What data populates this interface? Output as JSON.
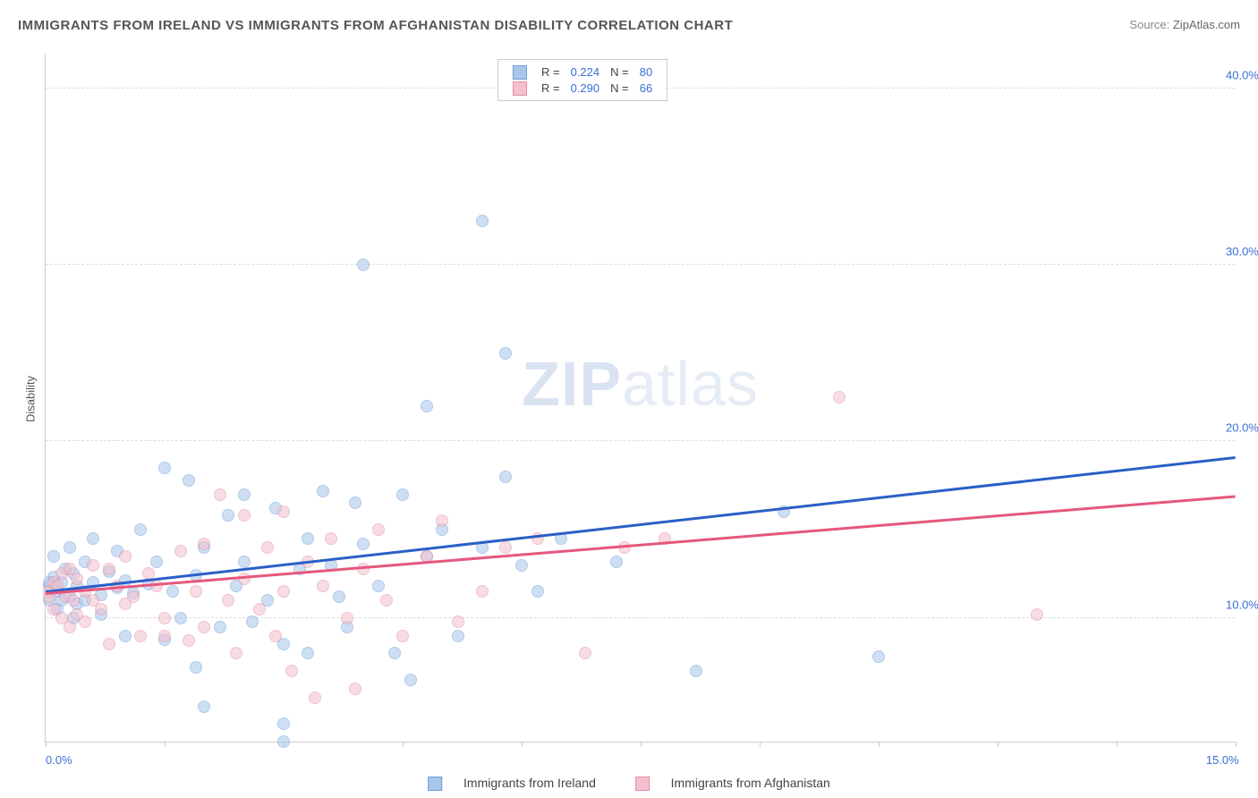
{
  "title": "IMMIGRANTS FROM IRELAND VS IMMIGRANTS FROM AFGHANISTAN DISABILITY CORRELATION CHART",
  "source_label": "Source:",
  "source_value": "ZipAtlas.com",
  "ylabel": "Disability",
  "watermark_a": "ZIP",
  "watermark_b": "atlas",
  "chart": {
    "type": "scatter",
    "xlim": [
      0,
      15
    ],
    "ylim": [
      3,
      42
    ],
    "x_ticks": [
      0,
      1.5,
      3,
      4.5,
      6,
      7.5,
      9,
      10.5,
      12,
      13.5,
      15
    ],
    "x_tick_labels": {
      "0": "0.0%",
      "15": "15.0%"
    },
    "y_gridlines": [
      10,
      20,
      30,
      40
    ],
    "y_tick_labels": {
      "10": "10.0%",
      "20": "20.0%",
      "30": "30.0%",
      "40": "40.0%"
    },
    "background_color": "#ffffff",
    "grid_color": "#dddddd",
    "axis_color": "#cccccc",
    "label_color": "#3b6fd6",
    "marker_radius": 7,
    "marker_opacity": 0.55,
    "series": [
      {
        "id": "ireland",
        "name": "Immigrants from Ireland",
        "fill_color": "#a8c5eb",
        "stroke_color": "#6f9fd8",
        "trend_color": "#2a5fc7",
        "R": "0.224",
        "N": "80",
        "trend": {
          "x1": 0,
          "y1": 11.4,
          "x2": 15,
          "y2": 19.0
        },
        "points": [
          [
            0.05,
            11.8
          ],
          [
            0.1,
            12.3
          ],
          [
            0.1,
            13.5
          ],
          [
            0.15,
            11.5
          ],
          [
            0.15,
            10.5
          ],
          [
            0.2,
            12.0
          ],
          [
            0.2,
            11.0
          ],
          [
            0.25,
            12.8
          ],
          [
            0.3,
            11.2
          ],
          [
            0.3,
            14.0
          ],
          [
            0.35,
            10.0
          ],
          [
            0.35,
            12.5
          ],
          [
            0.4,
            11.8
          ],
          [
            0.4,
            10.8
          ],
          [
            0.5,
            13.2
          ],
          [
            0.5,
            11.0
          ],
          [
            0.6,
            12.0
          ],
          [
            0.6,
            14.5
          ],
          [
            0.7,
            11.3
          ],
          [
            0.7,
            10.2
          ],
          [
            0.8,
            12.6
          ],
          [
            0.9,
            11.7
          ],
          [
            0.9,
            13.8
          ],
          [
            1.0,
            12.1
          ],
          [
            1.0,
            9.0
          ],
          [
            1.1,
            11.4
          ],
          [
            1.2,
            15.0
          ],
          [
            1.3,
            11.9
          ],
          [
            1.4,
            13.2
          ],
          [
            1.5,
            8.8
          ],
          [
            1.5,
            18.5
          ],
          [
            1.6,
            11.5
          ],
          [
            1.7,
            10.0
          ],
          [
            1.8,
            17.8
          ],
          [
            1.9,
            12.4
          ],
          [
            1.9,
            7.2
          ],
          [
            2.0,
            14.0
          ],
          [
            2.0,
            5.0
          ],
          [
            2.2,
            9.5
          ],
          [
            2.3,
            15.8
          ],
          [
            2.4,
            11.8
          ],
          [
            2.5,
            17.0
          ],
          [
            2.5,
            13.2
          ],
          [
            2.6,
            9.8
          ],
          [
            2.8,
            11.0
          ],
          [
            2.9,
            16.2
          ],
          [
            3.0,
            8.5
          ],
          [
            3.0,
            4.0
          ],
          [
            3.0,
            3.0
          ],
          [
            3.2,
            12.8
          ],
          [
            3.3,
            14.5
          ],
          [
            3.3,
            8.0
          ],
          [
            3.5,
            17.2
          ],
          [
            3.6,
            13.0
          ],
          [
            3.7,
            11.2
          ],
          [
            3.8,
            9.5
          ],
          [
            3.9,
            16.5
          ],
          [
            4.0,
            14.2
          ],
          [
            4.0,
            30.0
          ],
          [
            4.2,
            11.8
          ],
          [
            4.4,
            8.0
          ],
          [
            4.5,
            17.0
          ],
          [
            4.6,
            6.5
          ],
          [
            4.8,
            22.0
          ],
          [
            4.8,
            13.5
          ],
          [
            5.0,
            15.0
          ],
          [
            5.2,
            9.0
          ],
          [
            5.5,
            32.5
          ],
          [
            5.5,
            14.0
          ],
          [
            5.8,
            18.0
          ],
          [
            5.8,
            25.0
          ],
          [
            6.0,
            13.0
          ],
          [
            6.2,
            11.5
          ],
          [
            6.5,
            14.5
          ],
          [
            7.2,
            13.2
          ],
          [
            8.2,
            7.0
          ],
          [
            9.3,
            16.0
          ],
          [
            10.5,
            7.8
          ],
          [
            0.05,
            11.0
          ],
          [
            0.05,
            12.0
          ]
        ]
      },
      {
        "id": "afghanistan",
        "name": "Immigrants from Afghanistan",
        "fill_color": "#f4c0cd",
        "stroke_color": "#e38fa5",
        "trend_color": "#e6577e",
        "R": "0.290",
        "N": "66",
        "trend": {
          "x1": 0,
          "y1": 11.3,
          "x2": 15,
          "y2": 16.8
        },
        "points": [
          [
            0.05,
            11.5
          ],
          [
            0.1,
            12.0
          ],
          [
            0.1,
            10.5
          ],
          [
            0.15,
            11.8
          ],
          [
            0.2,
            10.0
          ],
          [
            0.2,
            12.5
          ],
          [
            0.25,
            11.2
          ],
          [
            0.3,
            9.5
          ],
          [
            0.3,
            12.8
          ],
          [
            0.35,
            11.0
          ],
          [
            0.4,
            10.2
          ],
          [
            0.4,
            12.2
          ],
          [
            0.5,
            11.5
          ],
          [
            0.5,
            9.8
          ],
          [
            0.6,
            13.0
          ],
          [
            0.6,
            11.0
          ],
          [
            0.7,
            10.5
          ],
          [
            0.8,
            12.8
          ],
          [
            0.8,
            8.5
          ],
          [
            0.9,
            11.8
          ],
          [
            1.0,
            10.8
          ],
          [
            1.0,
            13.5
          ],
          [
            1.1,
            11.2
          ],
          [
            1.2,
            9.0
          ],
          [
            1.3,
            12.5
          ],
          [
            1.4,
            11.8
          ],
          [
            1.5,
            10.0
          ],
          [
            1.5,
            9.0
          ],
          [
            1.7,
            13.8
          ],
          [
            1.8,
            8.7
          ],
          [
            1.9,
            11.5
          ],
          [
            2.0,
            14.2
          ],
          [
            2.0,
            9.5
          ],
          [
            2.2,
            17.0
          ],
          [
            2.3,
            11.0
          ],
          [
            2.4,
            8.0
          ],
          [
            2.5,
            15.8
          ],
          [
            2.5,
            12.2
          ],
          [
            2.7,
            10.5
          ],
          [
            2.8,
            14.0
          ],
          [
            2.9,
            9.0
          ],
          [
            3.0,
            16.0
          ],
          [
            3.0,
            11.5
          ],
          [
            3.1,
            7.0
          ],
          [
            3.3,
            13.2
          ],
          [
            3.4,
            5.5
          ],
          [
            3.5,
            11.8
          ],
          [
            3.6,
            14.5
          ],
          [
            3.8,
            10.0
          ],
          [
            3.9,
            6.0
          ],
          [
            4.0,
            12.8
          ],
          [
            4.2,
            15.0
          ],
          [
            4.3,
            11.0
          ],
          [
            4.5,
            9.0
          ],
          [
            4.8,
            13.5
          ],
          [
            5.0,
            15.5
          ],
          [
            5.2,
            9.8
          ],
          [
            5.5,
            11.5
          ],
          [
            5.8,
            14.0
          ],
          [
            6.2,
            14.5
          ],
          [
            6.8,
            8.0
          ],
          [
            7.3,
            14.0
          ],
          [
            7.8,
            14.5
          ],
          [
            10.0,
            22.5
          ],
          [
            12.5,
            10.2
          ],
          [
            0.05,
            11.2
          ]
        ]
      }
    ]
  },
  "legend_top": {
    "R_label": "R =",
    "N_label": "N ="
  },
  "legend_bottom": {
    "series1": "Immigrants from Ireland",
    "series2": "Immigrants from Afghanistan"
  }
}
